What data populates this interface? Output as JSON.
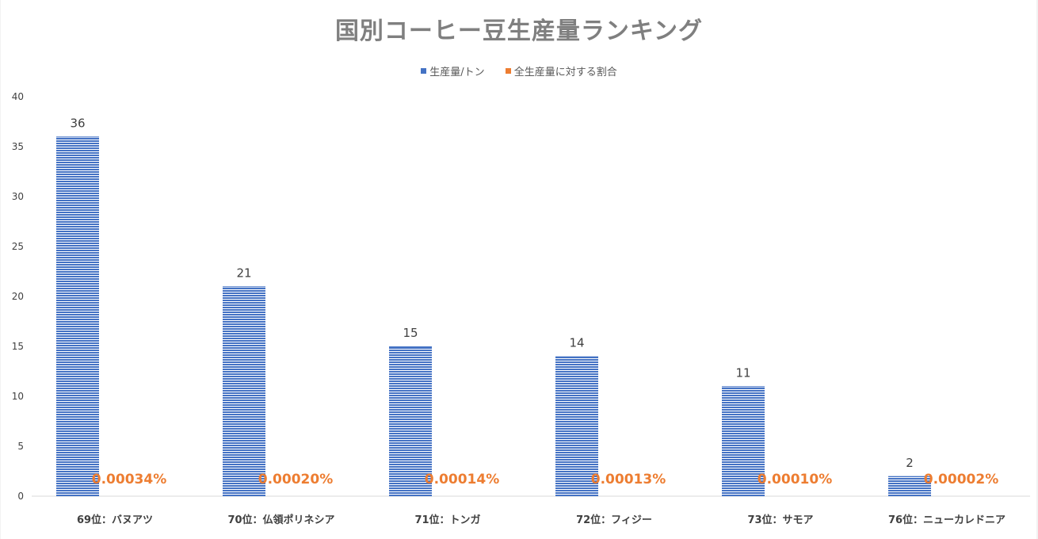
{
  "chart_data": {
    "type": "bar",
    "title": "国別コーヒー豆生産量ランキング",
    "categories": [
      "69位：バヌアツ",
      "70位：仏領ポリネシア",
      "71位：トンガ",
      "72位：フィジー",
      "73位：サモア",
      "76位：ニューカレドニア"
    ],
    "series": [
      {
        "name": "生産量/トン",
        "values": [
          36,
          21,
          15,
          14,
          11,
          2
        ],
        "data_labels": [
          "36",
          "21",
          "15",
          "14",
          "11",
          "2"
        ],
        "color": "#4472c4"
      },
      {
        "name": "全生産量に対する割合",
        "values": [
          0.00034,
          0.0002,
          0.00014,
          0.00013,
          0.0001,
          2e-05
        ],
        "data_labels": [
          "0.00034%",
          "0.00020%",
          "0.00014%",
          "0.00013%",
          "0.00010%",
          "0.00002%"
        ],
        "color": "#ed7d31"
      }
    ],
    "ylim": [
      0,
      40
    ],
    "yticks": [
      "0",
      "5",
      "10",
      "15",
      "20",
      "25",
      "30",
      "35",
      "40"
    ],
    "legend": "top",
    "grid": false
  }
}
